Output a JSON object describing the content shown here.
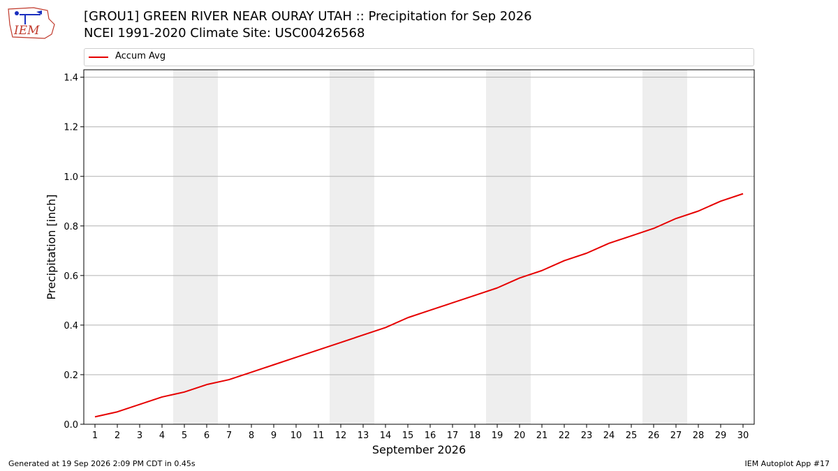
{
  "header": {
    "title_line1": "[GROU1] GREEN RIVER NEAR OURAY UTAH :: Precipitation for Sep 2026",
    "title_line2": "NCEI 1991-2020 Climate Site: USC00426568",
    "logo_text": "IEM"
  },
  "footer": {
    "generated": "Generated at 19 Sep 2026 2:09 PM CDT in 0.45s",
    "app": "IEM Autoplot App #17"
  },
  "colors": {
    "series": "#e60000",
    "weekend_band": "#eeeeee",
    "grid": "#b0b0b0"
  },
  "chart_data": {
    "type": "line",
    "title": "[GROU1] GREEN RIVER NEAR OURAY UTAH :: Precipitation for Sep 2026",
    "xlabel": "September 2026",
    "ylabel": "Precipitation [inch]",
    "xlim": [
      0.5,
      30.5
    ],
    "ylim": [
      0.0,
      1.43
    ],
    "yticks": [
      0.0,
      0.2,
      0.4,
      0.6,
      0.8,
      1.0,
      1.2,
      1.4
    ],
    "ytick_labels": [
      "0.0",
      "0.2",
      "0.4",
      "0.6",
      "0.8",
      "1.0",
      "1.2",
      "1.4"
    ],
    "x": [
      1,
      2,
      3,
      4,
      5,
      6,
      7,
      8,
      9,
      10,
      11,
      12,
      13,
      14,
      15,
      16,
      17,
      18,
      19,
      20,
      21,
      22,
      23,
      24,
      25,
      26,
      27,
      28,
      29,
      30
    ],
    "xtick_labels": [
      "1",
      "2",
      "3",
      "4",
      "5",
      "6",
      "7",
      "8",
      "9",
      "10",
      "11",
      "12",
      "13",
      "14",
      "15",
      "16",
      "17",
      "18",
      "19",
      "20",
      "21",
      "22",
      "23",
      "24",
      "25",
      "26",
      "27",
      "28",
      "29",
      "30"
    ],
    "grid": "horizontal",
    "legend_position": "top",
    "weekend_bands": [
      [
        4.5,
        6.5
      ],
      [
        11.5,
        13.5
      ],
      [
        18.5,
        20.5
      ],
      [
        25.5,
        27.5
      ]
    ],
    "series": [
      {
        "name": "Accum Avg",
        "color": "#e60000",
        "values": [
          0.03,
          0.05,
          0.08,
          0.11,
          0.13,
          0.16,
          0.18,
          0.21,
          0.24,
          0.27,
          0.3,
          0.33,
          0.36,
          0.39,
          0.43,
          0.46,
          0.49,
          0.52,
          0.55,
          0.59,
          0.62,
          0.66,
          0.69,
          0.73,
          0.76,
          0.79,
          0.83,
          0.86,
          0.9,
          0.93
        ]
      }
    ]
  }
}
